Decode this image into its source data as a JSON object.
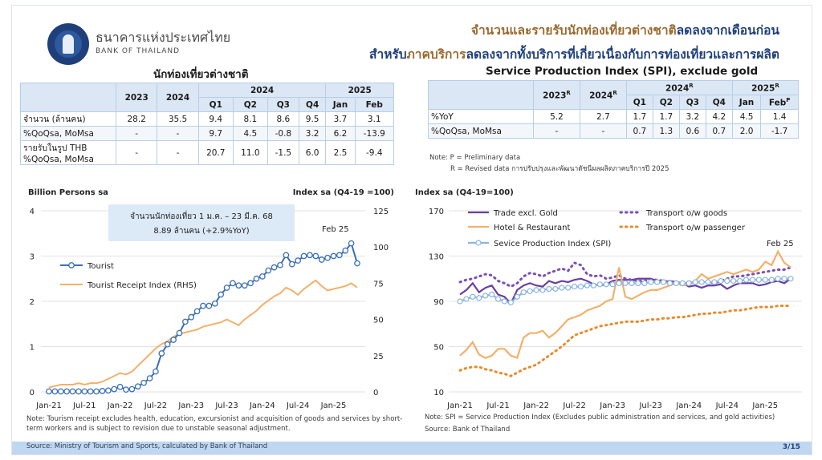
{
  "header": {
    "bank_name_th": "ธนาคารแห่งประเทศไทย",
    "bank_name_en": "BANK OF THAILAND",
    "title_line1_a": "จำนวนและรายรับนักท่องเที่ยวต่างชาติ",
    "title_line1_b": "ลดลงจากเดือนก่อน",
    "title_line2_a": "สำหรับ",
    "title_line2_b": "ภาคบริการ",
    "title_line2_c": "ลดลงจากทั้งบริการที่เกี่ยวเนื่องกับการท่องเที่ยวและการผลิต"
  },
  "left_table": {
    "title": "นักท่องเที่ยวต่างชาติ",
    "years": [
      "2023",
      "2024"
    ],
    "group_2024": "2024",
    "group_2025": "2025",
    "quarters": [
      "Q1",
      "Q2",
      "Q3",
      "Q4"
    ],
    "months": [
      "Jan",
      "Feb"
    ],
    "rows": [
      {
        "label": "จำนวน (ล้านคน)",
        "cells": [
          "28.2",
          "35.5",
          "9.4",
          "8.1",
          "8.6",
          "9.5",
          "3.7",
          "3.1"
        ]
      },
      {
        "label": "%QoQsa, MoMsa",
        "cells": [
          "-",
          "-",
          "9.7",
          "4.5",
          "-0.8",
          "3.2",
          "6.2",
          "-13.9"
        ]
      },
      {
        "label": "รายรับในรูป THB",
        "label2": "%QoQsa, MoMsa",
        "cells": [
          "-",
          "-",
          "20.7",
          "11.0",
          "-1.5",
          "6.0",
          "2.5",
          "-9.4"
        ]
      }
    ]
  },
  "right_table": {
    "title": "Service Production Index (SPI), exclude gold",
    "years": [
      "2023",
      "2024"
    ],
    "year_sup": "R",
    "group_2024": "2024",
    "group_2025": "2025",
    "quarters": [
      "Q1",
      "Q2",
      "Q3",
      "Q4"
    ],
    "months": [
      "Jan",
      "Feb"
    ],
    "feb_sup": "P",
    "rows": [
      {
        "label": "%YoY",
        "cells": [
          "5.2",
          "2.7",
          "1.7",
          "1.7",
          "3.2",
          "4.2",
          "4.5",
          "1.4"
        ]
      },
      {
        "label": "%QoQsa, MoMsa",
        "cells": [
          "-",
          "-",
          "0.7",
          "1.3",
          "0.6",
          "0.7",
          "2.0",
          "-1.7"
        ]
      }
    ],
    "note1": "Note: P = Preliminary data",
    "note2": "R = Revised data การปรับปรุงและพัฒนาดัชนีผลผลิตภาคบริการปี 2025"
  },
  "left_chart_labels": {
    "left_axis_title": "Billion Persons sa",
    "right_axis_title": "Index sa (Q4-19 =100)",
    "annotation_line1": "จำนวนนักท่องเที่ยว 1 ม.ค. – 23 มี.ค. 68",
    "annotation_line2": "8.89 ล้านคน (+2.9%YoY)",
    "feb_label": "Feb 25",
    "note": "Note: Tourism receipt excludes health, education, excursionist and acquisition of goods and services by short-term workers and is subject to revision due to unstable seasonal adjustment."
  },
  "right_chart_labels": {
    "axis_title": "Index sa (Q4-19=100)",
    "feb_label": "Feb 25",
    "note": "Note: SPI = Service Production Index (Excludes public administration and services, and gold activities)",
    "source": "Source: Bank of Thailand"
  },
  "footer": {
    "source": "Source: Ministry of Tourism and Sports, calculated by Bank of Thailand",
    "page": "3/15"
  },
  "colors": {
    "tourist": "#3a6fb5",
    "receipt": "#f3b06a",
    "trade": "#6a3fa0",
    "hotel": "#f3b06a",
    "transport_goods": "#7a4fb8",
    "transport_passenger": "#e88a2a",
    "spi": "#8ab4e0"
  },
  "chart_data": [
    {
      "type": "line",
      "x_labels": [
        "Jan-21",
        "Jul-21",
        "Jan-22",
        "Jul-22",
        "Jan-23",
        "Jul-23",
        "Jan-24",
        "Jul-24",
        "Jan-25"
      ],
      "ylim_left": [
        0,
        4
      ],
      "yticks_left": [
        "0",
        "1",
        "2",
        "3",
        "4"
      ],
      "ylim_right": [
        0,
        125
      ],
      "yticks_right": [
        "0",
        "25",
        "50",
        "75",
        "100",
        "125"
      ],
      "series": [
        {
          "name": "Tourist",
          "axis": "left",
          "marker": true,
          "values": [
            0.01,
            0.01,
            0.01,
            0.01,
            0.01,
            0.01,
            0.01,
            0.01,
            0.01,
            0.02,
            0.03,
            0.06,
            0.11,
            0.05,
            0.06,
            0.12,
            0.2,
            0.3,
            0.45,
            0.85,
            1.05,
            1.15,
            1.3,
            1.55,
            1.65,
            1.78,
            1.9,
            1.9,
            1.95,
            2.15,
            2.3,
            2.4,
            2.35,
            2.35,
            2.4,
            2.5,
            2.55,
            2.68,
            2.75,
            2.8,
            3.02,
            2.82,
            2.9,
            3.0,
            3.02,
            3.0,
            2.92,
            2.96,
            3.0,
            3.02,
            3.12,
            3.28,
            2.84
          ]
        },
        {
          "name": "Tourist Receipt Index (RHS)",
          "axis": "right",
          "marker": false,
          "values": [
            3,
            4,
            5,
            5,
            5,
            6,
            5,
            6,
            6,
            7,
            9,
            11,
            13,
            12,
            14,
            18,
            22,
            26,
            30,
            33,
            35,
            38,
            40,
            41,
            42,
            43,
            45,
            46,
            47,
            48,
            50,
            48,
            46,
            50,
            53,
            56,
            60,
            63,
            66,
            68,
            72,
            70,
            67,
            71,
            74,
            77,
            73,
            70,
            71,
            72,
            73,
            75,
            72
          ]
        }
      ]
    },
    {
      "type": "line",
      "x_labels": [
        "Jan-21",
        "Jul-21",
        "Jan-22",
        "Jul-22",
        "Jan-23",
        "Jul-23",
        "Jan-24",
        "Jul-24",
        "Jan-25"
      ],
      "ylim": [
        10,
        170
      ],
      "yticks": [
        "10",
        "50",
        "90",
        "130",
        "170"
      ],
      "series": [
        {
          "name": "Trade excl. Gold",
          "style": "solid",
          "values": [
            96,
            100,
            106,
            98,
            102,
            104,
            96,
            94,
            88,
            100,
            104,
            106,
            104,
            103,
            108,
            106,
            108,
            107,
            109,
            110,
            108,
            105,
            104,
            105,
            108,
            109,
            109,
            109,
            110,
            110,
            110,
            108,
            107,
            108,
            107,
            106,
            103,
            104,
            102,
            104,
            104,
            105,
            101,
            104,
            106,
            106,
            106,
            104,
            105,
            107,
            108,
            106,
            110
          ]
        },
        {
          "name": "Transport o/w goods",
          "style": "dotted",
          "values": [
            107,
            109,
            110,
            112,
            114,
            113,
            108,
            106,
            103,
            106,
            112,
            115,
            114,
            112,
            115,
            117,
            119,
            117,
            124,
            122,
            114,
            112,
            113,
            110,
            111,
            113,
            110,
            109,
            108,
            108,
            109,
            109,
            108,
            107,
            107,
            106,
            106,
            107,
            107,
            107,
            106,
            108,
            110,
            112,
            112,
            113,
            114,
            115,
            116,
            117,
            118,
            118,
            120
          ]
        },
        {
          "name": "Hotel & Restaurant",
          "style": "solid",
          "values": [
            42,
            47,
            54,
            43,
            40,
            42,
            48,
            48,
            42,
            40,
            58,
            62,
            62,
            64,
            58,
            62,
            68,
            74,
            76,
            78,
            82,
            84,
            86,
            90,
            92,
            120,
            94,
            92,
            95,
            98,
            100,
            100,
            102,
            104,
            106,
            104,
            105,
            108,
            114,
            110,
            112,
            114,
            116,
            114,
            116,
            118,
            116,
            118,
            125,
            122,
            134,
            124,
            120
          ]
        },
        {
          "name": "Transport o/w passenger",
          "style": "dotted",
          "values": [
            29,
            31,
            32,
            32,
            30,
            29,
            27,
            26,
            24,
            27,
            30,
            32,
            34,
            38,
            42,
            46,
            50,
            55,
            60,
            62,
            64,
            66,
            68,
            69,
            70,
            71,
            72,
            72,
            72,
            73,
            74,
            74,
            75,
            75,
            76,
            76,
            77,
            78,
            79,
            79,
            80,
            80,
            81,
            82,
            82,
            83,
            84,
            85,
            85,
            85,
            86,
            86,
            86
          ]
        },
        {
          "name": "Sevice Production Index (SPI)",
          "style": "marker",
          "values": [
            90,
            92,
            94,
            93,
            95,
            96,
            92,
            90,
            89,
            94,
            98,
            99,
            100,
            100,
            101,
            101,
            102,
            102,
            103,
            103,
            104,
            104,
            105,
            105,
            105,
            106,
            106,
            106,
            106,
            106,
            107,
            107,
            107,
            106,
            106,
            106,
            106,
            107,
            107,
            107,
            107,
            108,
            108,
            108,
            108,
            109,
            109,
            109,
            109,
            109,
            110,
            110,
            110
          ]
        }
      ]
    }
  ]
}
